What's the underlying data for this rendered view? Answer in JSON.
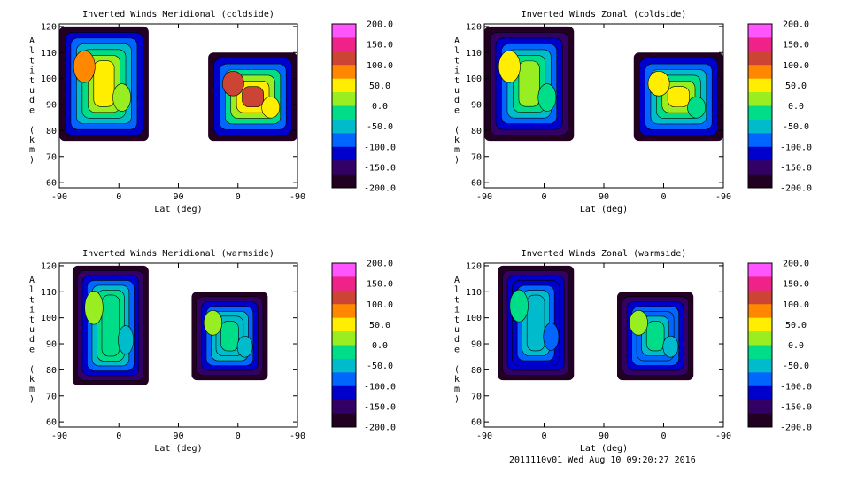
{
  "colorbar": {
    "labels": [
      "200.0",
      "150.0",
      "100.0",
      "50.0",
      "0.0",
      "-50.0",
      "-100.0",
      "-150.0",
      "-200.0"
    ],
    "colors": [
      "#ff55ff",
      "#ee2288",
      "#cc4433",
      "#ff8800",
      "#ffee00",
      "#99ee22",
      "#00dd88",
      "#00bbcc",
      "#0066ff",
      "#0000cc",
      "#330066",
      "#220022"
    ]
  },
  "chart_data": [
    {
      "type": "heatmap",
      "title": "Inverted Winds Meridional (coldside)",
      "xlabel": "Lat (deg)",
      "ylabel": "Altitude (km)",
      "xticks": [
        "-90",
        "0",
        "90",
        "0",
        "-90"
      ],
      "yticks": [
        "60",
        "70",
        "80",
        "90",
        "100",
        "110",
        "120"
      ],
      "ylim": [
        58,
        121
      ],
      "zlim": [
        -200,
        200
      ],
      "blocks": [
        {
          "x_from": -90,
          "x_to": 45,
          "alt_bottom": 76,
          "alt_top": 120,
          "level": 0.62
        },
        {
          "x_from": 135,
          "x_to": 270,
          "alt_bottom": 76,
          "alt_top": 110,
          "level": 0.78
        }
      ]
    },
    {
      "type": "heatmap",
      "title": "Inverted Winds Zonal (coldside)",
      "xlabel": "Lat (deg)",
      "ylabel": "Altitude (km)",
      "xticks": [
        "-90",
        "0",
        "90",
        "0",
        "-90"
      ],
      "yticks": [
        "60",
        "70",
        "80",
        "90",
        "100",
        "110",
        "120"
      ],
      "ylim": [
        58,
        121
      ],
      "zlim": [
        -200,
        200
      ],
      "blocks": [
        {
          "x_from": -90,
          "x_to": 45,
          "alt_bottom": 76,
          "alt_top": 120,
          "level": 0.52
        },
        {
          "x_from": 135,
          "x_to": 270,
          "alt_bottom": 76,
          "alt_top": 110,
          "level": 0.6
        }
      ]
    },
    {
      "type": "heatmap",
      "title": "Inverted Winds Meridional (warmside)",
      "xlabel": "Lat (deg)",
      "ylabel": "Altitude (km)",
      "xticks": [
        "-90",
        "0",
        "90",
        "0",
        "-90"
      ],
      "yticks": [
        "60",
        "70",
        "80",
        "90",
        "100",
        "110",
        "120"
      ],
      "ylim": [
        58,
        121
      ],
      "zlim": [
        -200,
        200
      ],
      "blocks": [
        {
          "x_from": -70,
          "x_to": 45,
          "alt_bottom": 74,
          "alt_top": 120,
          "level": 0.5
        },
        {
          "x_from": 110,
          "x_to": 225,
          "alt_bottom": 76,
          "alt_top": 110,
          "level": 0.46
        }
      ]
    },
    {
      "type": "heatmap",
      "title": "Inverted Winds Zonal (warmside)",
      "xlabel": "Lat (deg)",
      "ylabel": "Altitude (km)",
      "xticks": [
        "-90",
        "0",
        "90",
        "0",
        "-90"
      ],
      "yticks": [
        "60",
        "70",
        "80",
        "90",
        "100",
        "110",
        "120"
      ],
      "ylim": [
        58,
        121
      ],
      "zlim": [
        -200,
        200
      ],
      "blocks": [
        {
          "x_from": -70,
          "x_to": 45,
          "alt_bottom": 76,
          "alt_top": 120,
          "level": 0.38
        },
        {
          "x_from": 110,
          "x_to": 225,
          "alt_bottom": 76,
          "alt_top": 110,
          "level": 0.44
        }
      ]
    }
  ],
  "footer": "2011110v01 Wed Aug 10 09:20:27 2016"
}
